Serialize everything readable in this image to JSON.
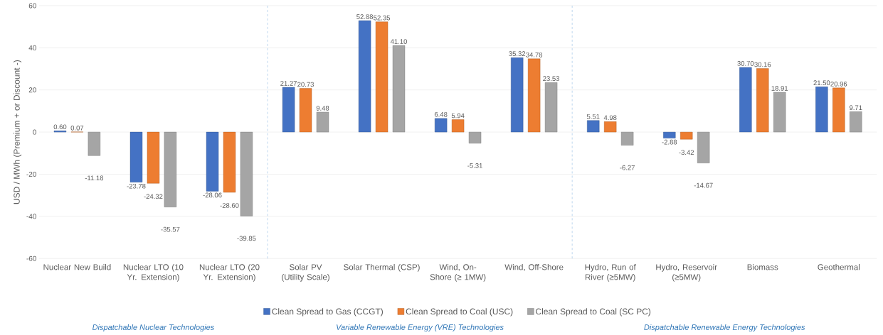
{
  "chart_data": {
    "type": "bar",
    "ylabel": "USD / MWh (Premium + or Discount -)",
    "categories": [
      "Nuclear New Build",
      "Nuclear LTO (10 Yr. Extension)",
      "Nuclear LTO (20 Yr. Extension)",
      "Solar PV (Utility Scale)",
      "Solar Thermal (CSP)",
      "Wind, On-Shore (≥ 1MW)",
      "Wind, Off-Shore",
      "Hydro, Run of River (≥5MW)",
      "Hydro, Reservoir (≥5MW)",
      "Biomass",
      "Geothermal"
    ],
    "series": [
      {
        "name": "Clean Spread to Gas (CCGT)",
        "color": "#4472c4",
        "values": [
          0.6,
          -23.78,
          -28.06,
          21.27,
          52.88,
          6.48,
          35.32,
          5.51,
          -2.88,
          30.7,
          21.5
        ],
        "value_labels": [
          "0.60",
          "-23.78",
          "-28.06",
          "21.27",
          "52.88",
          "6.48",
          "35.32",
          "5.51",
          "-2.88",
          "30.70",
          "21.50"
        ]
      },
      {
        "name": "Clean Spread to Coal (USC)",
        "color": "#ed7d31",
        "values": [
          0.07,
          -24.32,
          -28.6,
          20.73,
          52.35,
          5.94,
          34.78,
          4.98,
          -3.42,
          30.16,
          20.96
        ],
        "value_labels": [
          "0.07",
          "-24.32",
          "-28.60",
          "20.73",
          "52.35",
          "5.94",
          "34.78",
          "4.98",
          "-3.42",
          "30.16",
          "20.96"
        ]
      },
      {
        "name": "Clean Spread to Coal (SC PC)",
        "color": "#a5a5a5",
        "values": [
          -11.18,
          -35.57,
          -39.85,
          9.48,
          41.1,
          -5.31,
          23.53,
          -6.27,
          -14.67,
          18.91,
          9.71
        ],
        "value_labels": [
          "-11.18",
          "-35.57",
          "-39.85",
          "9.48",
          "41.10",
          "-5.31",
          "23.53",
          "-6.27",
          "-14.67",
          "18.91",
          "9.71"
        ]
      }
    ],
    "ylim": [
      -60,
      60
    ],
    "yticks": [
      -60,
      -40,
      -20,
      0,
      20,
      40,
      60
    ],
    "grid": "y",
    "legend": "bottom",
    "annotations": [
      "Dispatchable Nuclear Technologies",
      "Variable Renewable Energy (VRE) Technologies",
      "Dispatchable Renewable Energy Technologies"
    ]
  }
}
